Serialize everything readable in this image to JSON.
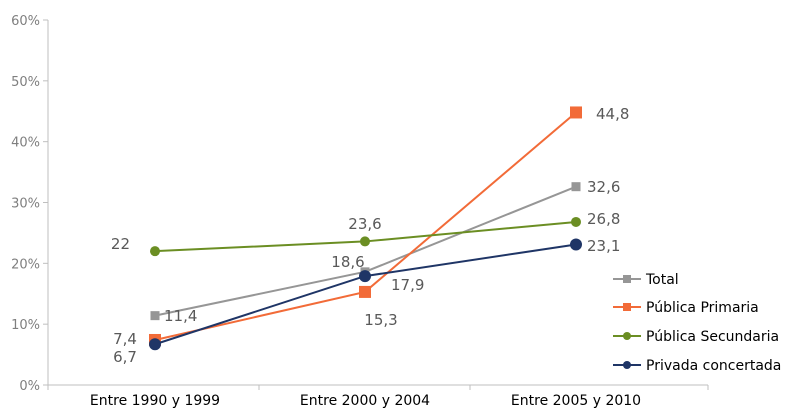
{
  "chart_data": {
    "type": "line",
    "categories": [
      "Entre 1990 y 1999",
      "Entre 2000 y 2004",
      "Entre 2005 y 2010"
    ],
    "ylim": [
      0,
      60
    ],
    "yticks": [
      0,
      10,
      20,
      30,
      40,
      50,
      60
    ],
    "ytick_labels": [
      "0%",
      "10%",
      "20%",
      "30%",
      "40%",
      "50%",
      "60%"
    ],
    "grid": false,
    "legend_position": "right",
    "series": [
      {
        "name": "Total",
        "color": "#969696",
        "marker": "square",
        "values": [
          11.4,
          18.6,
          32.6
        ],
        "labels": [
          "11,4",
          "18,6",
          "32,6"
        ]
      },
      {
        "name": "Pública Primaria",
        "color": "#f26b38",
        "marker": "square",
        "values": [
          7.4,
          15.3,
          44.8
        ],
        "labels": [
          "7,4",
          "15,3",
          "44,8"
        ]
      },
      {
        "name": "Pública Secundaria",
        "color": "#6b8e23",
        "marker": "circle",
        "values": [
          22,
          23.6,
          26.8
        ],
        "labels": [
          "22",
          "23,6",
          "26,8"
        ]
      },
      {
        "name": "Privada concertada",
        "color": "#1f3566",
        "marker": "circle",
        "values": [
          6.7,
          17.9,
          23.1
        ],
        "labels": [
          "6,7",
          "17,9",
          "23,1"
        ]
      }
    ]
  }
}
